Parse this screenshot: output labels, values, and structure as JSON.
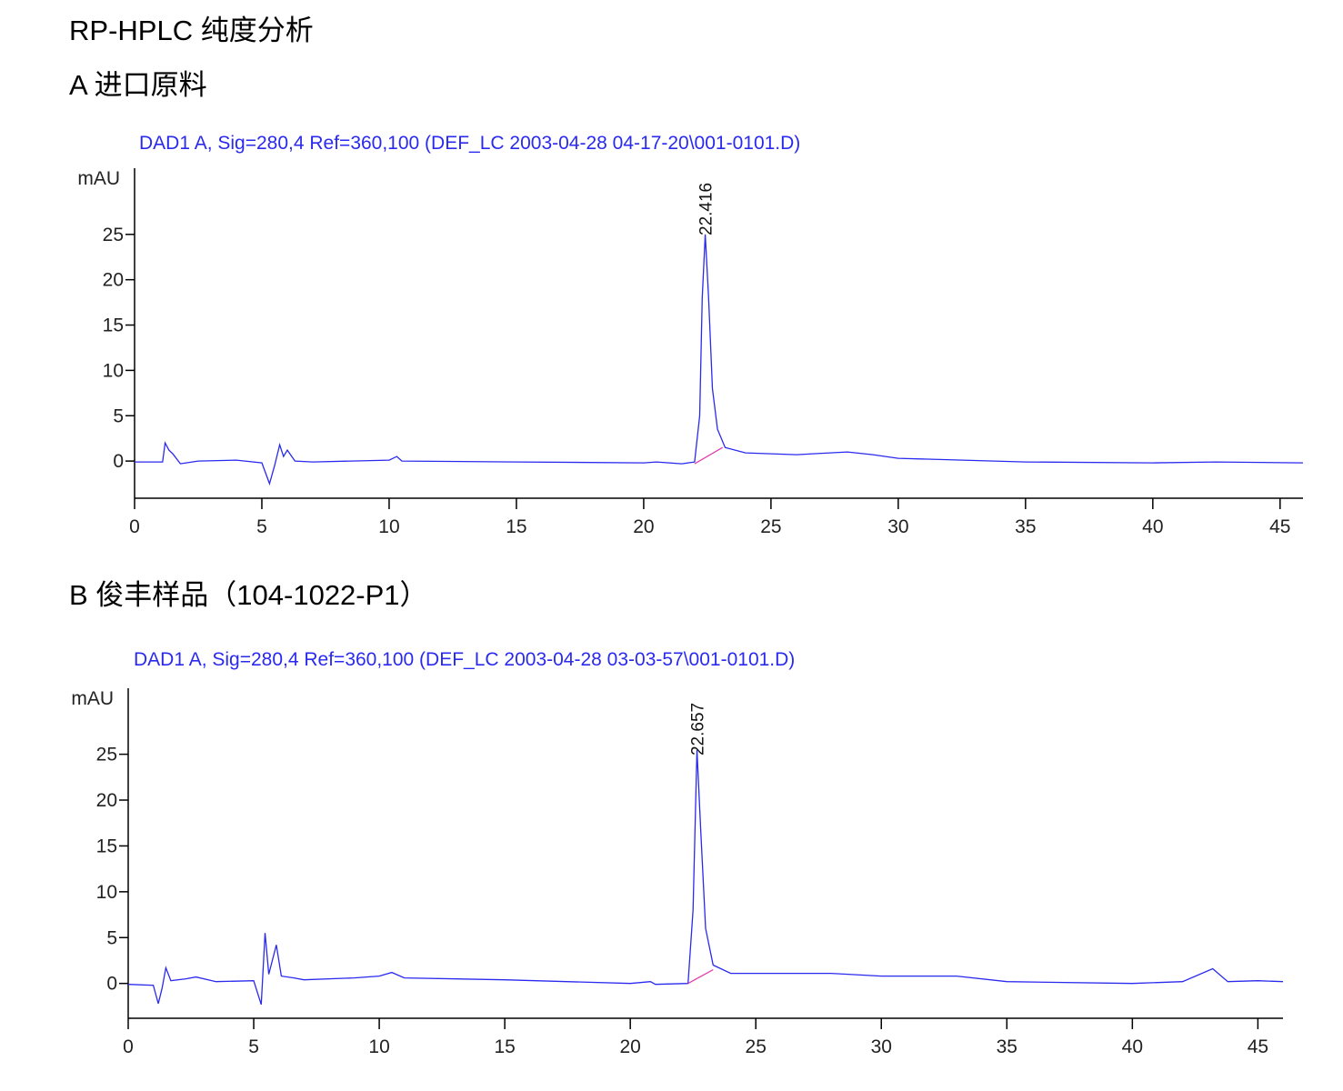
{
  "heading": "RP-HPLC 纯度分析",
  "chart_data": [
    {
      "type": "line",
      "caption": "A 进口原料",
      "title": "DAD1 A, Sig=280,4 Ref=360,100 (DEF_LC 2003-04-28 04-17-20\\001-0101.D)",
      "y_label": "mAU",
      "color": "#2a2aee",
      "x": [
        0,
        1.1,
        1.2,
        1.35,
        1.5,
        1.8,
        2.5,
        4,
        5,
        5.3,
        5.5,
        5.7,
        5.85,
        6,
        6.3,
        7,
        10,
        10.3,
        10.5,
        15,
        20,
        20.5,
        21.5,
        22.0,
        22.2,
        22.3,
        22.416,
        22.55,
        22.7,
        22.9,
        23.2,
        24,
        26,
        28,
        29,
        30,
        35,
        40,
        42.5,
        45.9
      ],
      "values": [
        -0.1,
        -0.1,
        2.0,
        1.2,
        0.8,
        -0.3,
        0,
        0.1,
        -0.2,
        -2.5,
        -0.5,
        1.8,
        0.5,
        1.2,
        0,
        -0.1,
        0.1,
        0.5,
        0,
        -0.1,
        -0.2,
        -0.1,
        -0.3,
        -0.1,
        5,
        18,
        25,
        18,
        8,
        3.5,
        1.5,
        0.9,
        0.7,
        1.0,
        0.7,
        0.3,
        -0.1,
        -0.2,
        -0.1,
        -0.2
      ],
      "baseline": {
        "x": [
          22.0,
          23.1
        ],
        "values": [
          -0.3,
          1.5
        ],
        "color": "#e040b0"
      },
      "peak_labels": [
        {
          "x": 22.416,
          "label": "22.416"
        }
      ],
      "xlim": [
        0,
        45.9
      ],
      "ylim": [
        -4.1,
        32.3
      ],
      "xticks": [
        0,
        5,
        10,
        15,
        20,
        25,
        30,
        35,
        40,
        45
      ],
      "yticks": [
        0,
        5,
        10,
        15,
        20,
        25
      ]
    },
    {
      "type": "line",
      "caption": "B 俊丰样品（104-1022-P1）",
      "title": "DAD1 A, Sig=280,4 Ref=360,100 (DEF_LC 2003-04-28 03-03-57\\001-0101.D)",
      "y_label": "mAU",
      "color": "#2a2aee",
      "x": [
        0,
        1.0,
        1.2,
        1.35,
        1.5,
        1.7,
        2.3,
        2.7,
        3.5,
        5,
        5.3,
        5.45,
        5.6,
        5.9,
        6.1,
        6.6,
        7,
        9,
        10,
        10.5,
        11,
        15,
        20,
        20.8,
        21,
        22.3,
        22.5,
        22.657,
        22.8,
        23,
        23.3,
        24,
        28,
        30,
        33,
        35,
        40,
        42,
        43.2,
        43.8,
        45,
        46
      ],
      "values": [
        -0.1,
        -0.2,
        -2.2,
        -0.5,
        1.7,
        0.3,
        0.5,
        0.7,
        0.2,
        0.3,
        -2.3,
        5.5,
        1.0,
        4.2,
        0.8,
        0.6,
        0.4,
        0.6,
        0.8,
        1.2,
        0.6,
        0.4,
        0,
        0.2,
        -0.1,
        0,
        8,
        25.5,
        17,
        6,
        2,
        1.1,
        1.1,
        0.8,
        0.8,
        0.2,
        0,
        0.2,
        1.6,
        0.2,
        0.3,
        0.2
      ],
      "baseline": {
        "x": [
          22.3,
          23.3
        ],
        "values": [
          0,
          1.5
        ],
        "color": "#e040b0"
      },
      "peak_labels": [
        {
          "x": 22.657,
          "label": "22.657"
        }
      ],
      "xlim": [
        0,
        46.0
      ],
      "ylim": [
        -3.8,
        32.2
      ],
      "xticks": [
        0,
        5,
        10,
        15,
        20,
        25,
        30,
        35,
        40,
        45
      ],
      "yticks": [
        0,
        5,
        10,
        15,
        20,
        25
      ]
    }
  ]
}
